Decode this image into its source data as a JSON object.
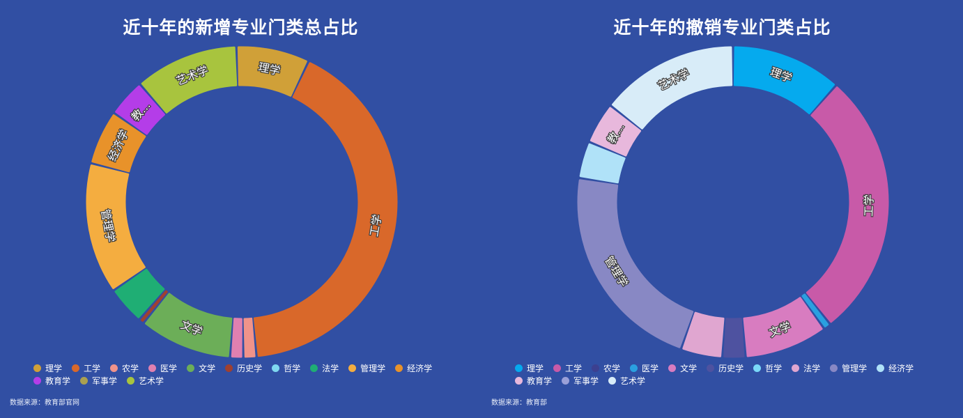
{
  "chart_data": [
    {
      "type": "pie",
      "title": "近十年的新增专业门类总占比",
      "categories": [
        "理学",
        "工学",
        "农学",
        "医学",
        "文学",
        "历史学",
        "哲学",
        "法学",
        "管理学",
        "经济学",
        "教育学",
        "军事学",
        "艺术学"
      ],
      "values": [
        0.067,
        0.365,
        0.012,
        0.012,
        0.085,
        0.005,
        0.0,
        0.035,
        0.12,
        0.05,
        0.035,
        0.0,
        0.095
      ],
      "colors": [
        "#d0a038",
        "#d9682a",
        "#f0938a",
        "#e080b0",
        "#6cae58",
        "#a04030",
        "#7fd8f0",
        "#1fae74",
        "#f4ad40",
        "#e8922a",
        "#b43de8",
        "#aaa050",
        "#a8c43e"
      ],
      "segment_labels": [
        "理学",
        "工学",
        "",
        "",
        "文学",
        "",
        "",
        "",
        "管理学",
        "经济学",
        "教...",
        "",
        "艺术学"
      ],
      "legend": "bottom"
    },
    {
      "type": "pie",
      "title": "近十年的撤销专业门类占比",
      "categories": [
        "理学",
        "工学",
        "农学",
        "医学",
        "文学",
        "历史学",
        "哲学",
        "法学",
        "管理学",
        "经济学",
        "教育学",
        "军事学",
        "艺术学"
      ],
      "values": [
        0.12,
        0.29,
        0.0,
        0.008,
        0.09,
        0.025,
        0.0,
        0.045,
        0.23,
        0.04,
        0.045,
        0.0,
        0.15
      ],
      "colors": [
        "#05aaee",
        "#c85aa8",
        "#3c4090",
        "#2aa0e0",
        "#d87cc0",
        "#4e52a0",
        "#7ad8f8",
        "#e0a6d0",
        "#8888c4",
        "#b0e2f8",
        "#e8b8dc",
        "#9aa0d8",
        "#d8ecf8"
      ],
      "segment_labels": [
        "理学",
        "工学",
        "",
        "",
        "文学",
        "",
        "",
        "",
        "管理学",
        "",
        "教...",
        "",
        "艺术学"
      ],
      "legend": "bottom"
    }
  ],
  "sources": [
    "数据来源：教育部官网",
    "数据来源：教育部"
  ]
}
